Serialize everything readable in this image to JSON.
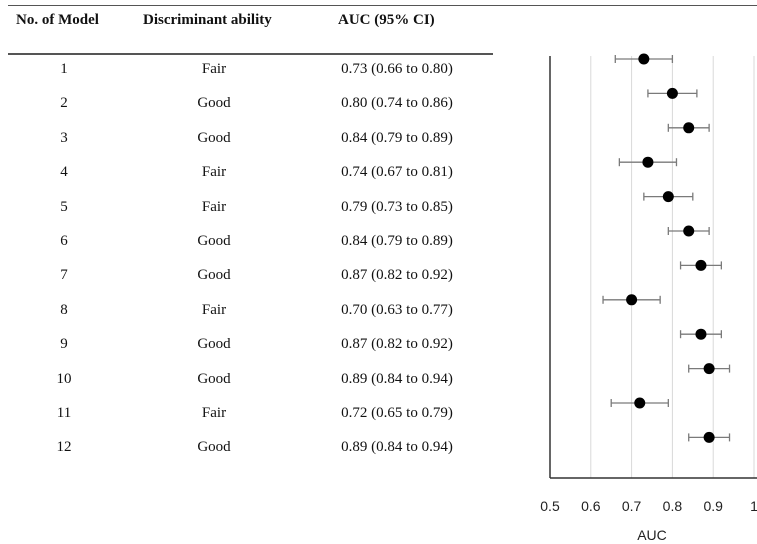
{
  "table": {
    "headers": {
      "model": "No. of Model",
      "ability": "Discriminant ability",
      "auc": "AUC (95% CI)"
    },
    "rows": [
      {
        "model": "1",
        "ability": "Fair",
        "auc": "0.73 (0.66 to 0.80)"
      },
      {
        "model": "2",
        "ability": "Good",
        "auc": "0.80 (0.74 to 0.86)"
      },
      {
        "model": "3",
        "ability": "Good",
        "auc": "0.84 (0.79 to 0.89)"
      },
      {
        "model": "4",
        "ability": "Fair",
        "auc": "0.74 (0.67 to 0.81)"
      },
      {
        "model": "5",
        "ability": "Fair",
        "auc": "0.79 (0.73 to 0.85)"
      },
      {
        "model": "6",
        "ability": "Good",
        "auc": "0.84 (0.79 to 0.89)"
      },
      {
        "model": "7",
        "ability": "Good",
        "auc": "0.87 (0.82 to 0.92)"
      },
      {
        "model": "8",
        "ability": "Fair",
        "auc": "0.70 (0.63 to 0.77)"
      },
      {
        "model": "9",
        "ability": "Good",
        "auc": "0.87 (0.82 to 0.92)"
      },
      {
        "model": "10",
        "ability": "Good",
        "auc": "0.89 (0.84 to 0.94)"
      },
      {
        "model": "11",
        "ability": "Fair",
        "auc": "0.72 (0.65 to 0.79)"
      },
      {
        "model": "12",
        "ability": "Good",
        "auc": "0.89 (0.84 to 0.94)"
      }
    ]
  },
  "chart_data": {
    "type": "scatter",
    "subtype": "forest-plot",
    "xlabel": "AUC",
    "xlim": [
      0.5,
      1.0
    ],
    "xticks": [
      0.5,
      0.6,
      0.7,
      0.8,
      0.9,
      1.0
    ],
    "xtick_labels": [
      "0.5",
      "0.6",
      "0.7",
      "0.8",
      "0.9",
      "1"
    ],
    "grid": true,
    "categories": [
      "1",
      "2",
      "3",
      "4",
      "5",
      "6",
      "7",
      "8",
      "9",
      "10",
      "11",
      "12"
    ],
    "estimates": [
      0.73,
      0.8,
      0.84,
      0.74,
      0.79,
      0.84,
      0.87,
      0.7,
      0.87,
      0.89,
      0.72,
      0.89
    ],
    "ci_lower": [
      0.66,
      0.74,
      0.79,
      0.67,
      0.73,
      0.79,
      0.82,
      0.63,
      0.82,
      0.84,
      0.65,
      0.84
    ],
    "ci_upper": [
      0.8,
      0.86,
      0.89,
      0.81,
      0.85,
      0.89,
      0.92,
      0.77,
      0.92,
      0.94,
      0.79,
      0.94
    ],
    "colors": {
      "point": "#000000",
      "whisker": "#7a7a7a",
      "grid": "#d9d9d9",
      "axis": "#333333"
    }
  }
}
